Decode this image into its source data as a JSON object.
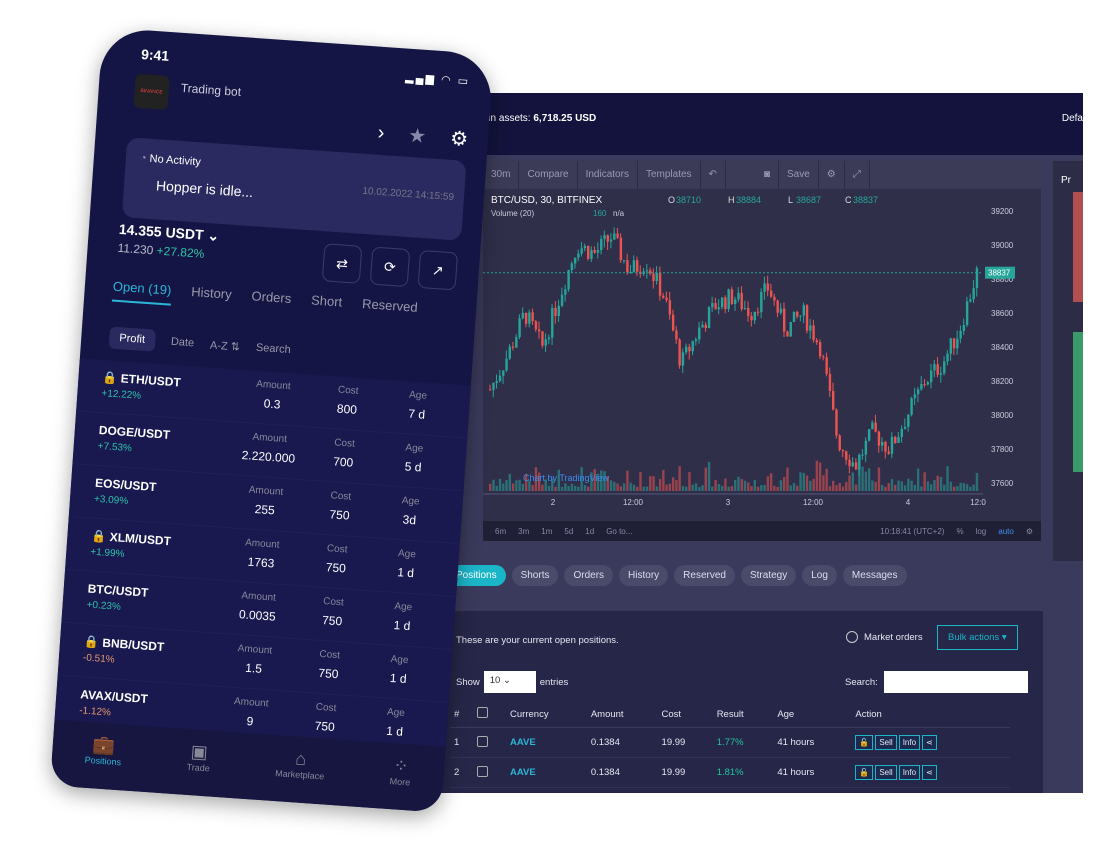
{
  "desktop": {
    "assets_label": "tal in assets:",
    "assets_value": "6,718.25 USD",
    "default_label": "Defa",
    "toolbar": [
      "30m",
      "Compare",
      "Indicators",
      "Templates",
      "Save"
    ],
    "symbol": "BTC/USD, 30, BITFINEX",
    "ohlc": {
      "o": "38710",
      "h": "38884",
      "l": "38687",
      "c": "38837"
    },
    "volume": "Volume (20)",
    "volume_val": "160",
    "volume_na": "n/a",
    "watermark": "Chart by TradingView",
    "price_ticks": [
      "39200",
      "39000",
      "38800",
      "38600",
      "38400",
      "38200",
      "38000",
      "37800",
      "37600"
    ],
    "last_price": "38837",
    "time_ticks": [
      "2",
      "12:00",
      "3",
      "12:00",
      "4",
      "12:0"
    ],
    "ranges": [
      "6m",
      "3m",
      "1m",
      "5d",
      "1d",
      "Go to..."
    ],
    "clock": "10:18:41 (UTC+2)",
    "pct": "%",
    "log": "log",
    "auto": "auto",
    "close_series": [
      38150,
      38350,
      38600,
      38400,
      38700,
      39000,
      38950,
      39050,
      38850,
      38900,
      38700,
      38300,
      38500,
      38650,
      38700,
      38600,
      38750,
      38500,
      38600,
      38400,
      37850,
      37700,
      37900,
      37800,
      38000,
      38200,
      38300,
      38500,
      38837
    ],
    "right_panel_title": "Pr",
    "tabs": [
      "Positions",
      "Shorts",
      "Orders",
      "History",
      "Reserved",
      "Strategy",
      "Log",
      "Messages"
    ],
    "panel": {
      "intro": "These are your current open positions.",
      "market_orders": "Market orders",
      "bulk": "Bulk actions ▾",
      "show": "Show",
      "entries_value": "10",
      "entries": "entries",
      "search": "Search:",
      "headers": [
        "#",
        "",
        "Currency",
        "Amount",
        "Cost",
        "Result",
        "Age",
        "Action"
      ],
      "rows": [
        {
          "n": "1",
          "cur": "AAVE",
          "amount": "0.1384",
          "cost": "19.99",
          "result": "1.77%",
          "age": "41 hours"
        },
        {
          "n": "2",
          "cur": "AAVE",
          "amount": "0.1384",
          "cost": "19.99",
          "result": "1.81%",
          "age": "41 hours"
        }
      ],
      "actions": {
        "sell": "Sell",
        "info": "Info"
      }
    }
  },
  "phone": {
    "time": "9:41",
    "logo_text": "BINANCE",
    "bot": "Trading bot",
    "activity_title": "No Activity",
    "activity_msg": "Hopper is idle...",
    "activity_time": "10.02.2022 14:15:59",
    "balance": "14.355 USDT",
    "base": "11.230",
    "gain": "+27.82%",
    "tabs": [
      "Open (19)",
      "History",
      "Orders",
      "Short",
      "Reserved"
    ],
    "filters": [
      "Profit",
      "Date",
      "A-Z ⇅",
      "Search"
    ],
    "col_labels": {
      "amount": "Amount",
      "cost": "Cost",
      "age": "Age"
    },
    "rows": [
      {
        "pair": "ETH/USDT",
        "chg": "+12.22%",
        "amount": "0.3",
        "cost": "800",
        "age": "7 d",
        "lock": true
      },
      {
        "pair": "DOGE/USDT",
        "chg": "+7.53%",
        "amount": "2.220.000",
        "cost": "700",
        "age": "5 d"
      },
      {
        "pair": "EOS/USDT",
        "chg": "+3.09%",
        "amount": "255",
        "cost": "750",
        "age": "3d"
      },
      {
        "pair": "XLM/USDT",
        "chg": "+1.99%",
        "amount": "1763",
        "cost": "750",
        "age": "1 d",
        "lock": true
      },
      {
        "pair": "BTC/USDT",
        "chg": "+0.23%",
        "amount": "0.0035",
        "cost": "750",
        "age": "1 d"
      },
      {
        "pair": "BNB/USDT",
        "chg": "-0.51%",
        "amount": "1.5",
        "cost": "750",
        "age": "1 d",
        "lock": true
      },
      {
        "pair": "AVAX/USDT",
        "chg": "-1.12%",
        "amount": "9",
        "cost": "750",
        "age": "1 d"
      }
    ],
    "nav": [
      "Positions",
      "Trade",
      "Marketplace",
      "More"
    ]
  },
  "colors": {
    "accent": "#1bb5c8",
    "up": "#22c49a",
    "down": "#e0556a",
    "navy": "#151545"
  }
}
